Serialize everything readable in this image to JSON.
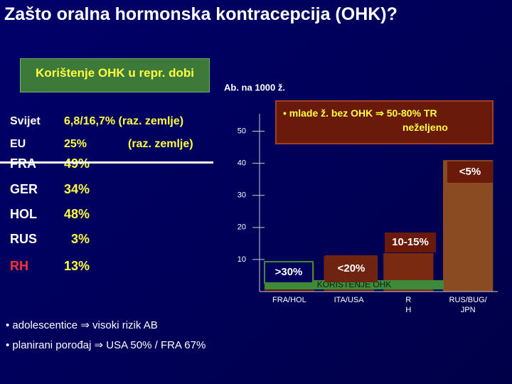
{
  "slide": {
    "title": "Zašto oralna hormonska kontracepcija (OHK)?",
    "box_title": "Korištenje OHK u repr. dobi",
    "rows": [
      [
        "Svijet",
        "6,8/16,7% (raz. zemlje)"
      ],
      [
        "EU",
        "25%",
        "(raz. zemlje)"
      ],
      [
        "FRA",
        "49%"
      ],
      [
        "GER",
        "34%"
      ],
      [
        "HOL",
        "48%"
      ],
      [
        "RUS",
        "3%"
      ],
      [
        "RH",
        "13%"
      ]
    ],
    "bullets": [
      "• adolescentice ⇒ visoki rizik AB",
      "• planirani porođaj ⇒ USA 50% / FRA 67%"
    ]
  },
  "chart_data": {
    "type": "bar",
    "y_label": "Ab. na 1000 ž.",
    "categories": [
      "FRA/HOL",
      "ITA/USA",
      "R H",
      "RUS/BUG/ JPN"
    ],
    "values": [
      9,
      11,
      12,
      41
    ],
    "colors": [
      "#5a1a08",
      "#6e2410",
      "#7a2a10",
      "#8a4a22"
    ],
    "ylim": [
      0,
      55
    ],
    "yticks": [
      10,
      20,
      30,
      40,
      50
    ],
    "band_label": "KORIŠTENJE OHK",
    "annotations": [
      "• mlade ž. bez OHK ⇒ 50-80% TR neželjeno",
      ">30%",
      "<20%",
      "10-15%",
      "<5%"
    ]
  }
}
